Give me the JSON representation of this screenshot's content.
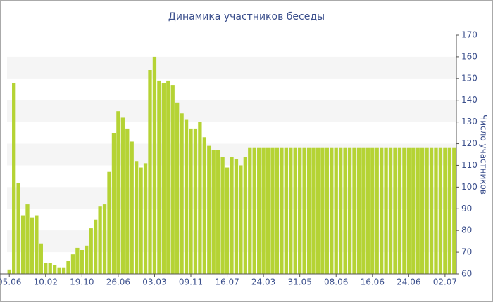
{
  "chart_data": {
    "type": "bar",
    "title": "Динамика участников беседы",
    "y_axis_label": "Число участников",
    "categories": [
      "05.06",
      null,
      null,
      null,
      null,
      null,
      null,
      null,
      "10.02",
      null,
      null,
      null,
      null,
      null,
      null,
      null,
      "19.10",
      null,
      null,
      null,
      null,
      null,
      null,
      null,
      "26.06",
      null,
      null,
      null,
      null,
      null,
      null,
      null,
      "03.03",
      null,
      null,
      null,
      null,
      null,
      null,
      null,
      "09.11",
      null,
      null,
      null,
      null,
      null,
      null,
      null,
      "16.07",
      null,
      null,
      null,
      null,
      null,
      null,
      null,
      "24.03",
      null,
      null,
      null,
      null,
      null,
      null,
      null,
      "31.05",
      null,
      null,
      null,
      null,
      null,
      null,
      null,
      "08.06",
      null,
      null,
      null,
      null,
      null,
      null,
      null,
      "16.06",
      null,
      null,
      null,
      null,
      null,
      null,
      null,
      "24.06",
      null,
      null,
      null,
      null,
      null,
      null,
      null,
      "02.07",
      null,
      null
    ],
    "values": [
      62,
      148,
      102,
      87,
      92,
      86,
      87,
      74,
      65,
      65,
      64,
      63,
      63,
      66,
      69,
      72,
      71,
      73,
      81,
      85,
      91,
      92,
      107,
      125,
      135,
      132,
      127,
      121,
      112,
      109,
      111,
      154,
      160,
      149,
      148,
      149,
      147,
      139,
      134,
      131,
      127,
      127,
      130,
      123,
      119,
      117,
      117,
      114,
      109,
      114,
      113,
      110,
      114,
      118,
      118,
      118,
      118,
      118,
      118,
      118,
      118,
      118,
      118,
      118,
      118,
      118,
      118,
      118,
      118,
      118,
      118,
      118,
      118,
      118,
      118,
      118,
      118,
      118,
      118,
      118,
      118,
      118,
      118,
      118,
      118,
      118,
      118,
      118,
      118,
      118,
      118,
      118,
      118,
      118,
      118,
      118,
      118,
      118,
      118
    ],
    "color": "#b5d334",
    "ylim": [
      60,
      170
    ],
    "yticks": [
      60,
      70,
      80,
      90,
      100,
      110,
      120,
      130,
      140,
      150,
      160,
      170
    ],
    "bands": true
  }
}
